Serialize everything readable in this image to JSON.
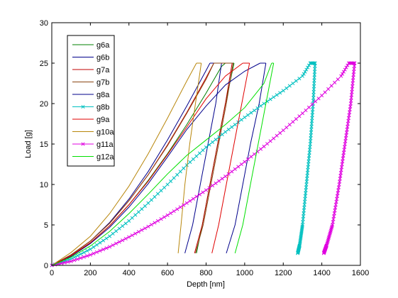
{
  "chart_data": {
    "type": "line",
    "xlabel": "Depth  [nm]",
    "ylabel": "Load  [g]",
    "xlim": [
      0,
      1600
    ],
    "ylim": [
      0,
      30
    ],
    "xticks": [
      0,
      200,
      400,
      600,
      800,
      1000,
      1200,
      1400,
      1600
    ],
    "yticks": [
      0,
      5,
      10,
      15,
      20,
      25,
      30
    ],
    "grid": false,
    "legend_position": "top-left",
    "series": [
      {
        "name": "g6a",
        "color": "#008000",
        "marker": "none",
        "loading": [
          [
            0,
            0
          ],
          [
            100,
            1.2
          ],
          [
            200,
            2.8
          ],
          [
            300,
            4.9
          ],
          [
            400,
            7.5
          ],
          [
            500,
            10.5
          ],
          [
            600,
            13.8
          ],
          [
            700,
            17.4
          ],
          [
            800,
            21.3
          ],
          [
            880,
            24.6
          ],
          [
            900,
            25
          ]
        ],
        "hold": [
          [
            900,
            25
          ],
          [
            945,
            25
          ]
        ],
        "unloading": [
          [
            945,
            25
          ],
          [
            900,
            20
          ],
          [
            860,
            15
          ],
          [
            820,
            10
          ],
          [
            780,
            5
          ],
          [
            750,
            1.5
          ]
        ]
      },
      {
        "name": "g6b",
        "color": "#00008b",
        "marker": "none",
        "loading": [
          [
            0,
            0
          ],
          [
            100,
            1.3
          ],
          [
            200,
            3.0
          ],
          [
            300,
            5.3
          ],
          [
            400,
            8.2
          ],
          [
            500,
            11.6
          ],
          [
            600,
            15.5
          ],
          [
            700,
            19.7
          ],
          [
            800,
            24.1
          ],
          [
            820,
            25
          ]
        ],
        "hold": [
          [
            820,
            25
          ],
          [
            880,
            25
          ]
        ],
        "unloading": [
          [
            880,
            25
          ],
          [
            850,
            20
          ],
          [
            810,
            15
          ],
          [
            770,
            10
          ],
          [
            730,
            5
          ],
          [
            690,
            1.5
          ]
        ]
      },
      {
        "name": "g7a",
        "color": "#c00000",
        "marker": "none",
        "loading": [
          [
            0,
            0
          ],
          [
            100,
            1.3
          ],
          [
            200,
            3.0
          ],
          [
            300,
            5.2
          ],
          [
            400,
            8.0
          ],
          [
            500,
            11.2
          ],
          [
            600,
            14.9
          ],
          [
            700,
            18.9
          ],
          [
            800,
            23.2
          ],
          [
            840,
            25
          ]
        ],
        "hold": [
          [
            840,
            25
          ],
          [
            935,
            25
          ]
        ],
        "unloading": [
          [
            935,
            25
          ],
          [
            900,
            20
          ],
          [
            860,
            15
          ],
          [
            820,
            10
          ],
          [
            780,
            5
          ],
          [
            740,
            1.5
          ]
        ]
      },
      {
        "name": "g7b",
        "color": "#8b4513",
        "marker": "none",
        "loading": [
          [
            0,
            0
          ],
          [
            100,
            1.3
          ],
          [
            200,
            3.0
          ],
          [
            300,
            5.2
          ],
          [
            400,
            8.0
          ],
          [
            500,
            11.2
          ],
          [
            600,
            14.8
          ],
          [
            700,
            18.8
          ],
          [
            800,
            23.0
          ],
          [
            840,
            25
          ]
        ],
        "hold": [
          [
            840,
            25
          ],
          [
            940,
            25
          ]
        ],
        "unloading": [
          [
            940,
            25
          ],
          [
            905,
            20
          ],
          [
            865,
            15
          ],
          [
            825,
            10
          ],
          [
            785,
            5
          ],
          [
            745,
            1.5
          ]
        ]
      },
      {
        "name": "g8a",
        "color": "#00008b",
        "marker": "none",
        "loading": [
          [
            0,
            0
          ],
          [
            100,
            1.1
          ],
          [
            200,
            2.7
          ],
          [
            300,
            4.7
          ],
          [
            400,
            7.2
          ],
          [
            500,
            10.1
          ],
          [
            600,
            13.4
          ],
          [
            700,
            16.8
          ],
          [
            800,
            19.7
          ],
          [
            900,
            22.3
          ],
          [
            1000,
            24.0
          ],
          [
            1080,
            25
          ]
        ],
        "hold": [
          [
            1080,
            25
          ],
          [
            1110,
            25
          ]
        ],
        "unloading": [
          [
            1110,
            25
          ],
          [
            1075,
            20
          ],
          [
            1030,
            15
          ],
          [
            990,
            10
          ],
          [
            950,
            5
          ],
          [
            905,
            1.5
          ]
        ]
      },
      {
        "name": "g8b",
        "color": "#00c0c0",
        "marker": "x",
        "loading": [
          [
            0,
            0
          ],
          [
            100,
            0.8
          ],
          [
            200,
            2.0
          ],
          [
            300,
            3.6
          ],
          [
            400,
            5.5
          ],
          [
            500,
            7.7
          ],
          [
            600,
            10.0
          ],
          [
            700,
            12.4
          ],
          [
            800,
            14.6
          ],
          [
            900,
            16.5
          ],
          [
            1000,
            18.3
          ],
          [
            1100,
            20.0
          ],
          [
            1200,
            21.6
          ],
          [
            1300,
            23.4
          ],
          [
            1340,
            25
          ]
        ],
        "hold": [
          [
            1340,
            25
          ],
          [
            1365,
            25
          ]
        ],
        "unloading": [
          [
            1365,
            25
          ],
          [
            1355,
            20
          ],
          [
            1340,
            15
          ],
          [
            1320,
            10
          ],
          [
            1300,
            5
          ],
          [
            1285,
            2.5
          ],
          [
            1275,
            1.5
          ]
        ]
      },
      {
        "name": "g9a",
        "color": "#e00000",
        "marker": "none",
        "loading": [
          [
            0,
            0
          ],
          [
            100,
            1.2
          ],
          [
            200,
            2.8
          ],
          [
            300,
            4.9
          ],
          [
            400,
            7.5
          ],
          [
            500,
            10.4
          ],
          [
            600,
            13.7
          ],
          [
            700,
            17.1
          ],
          [
            800,
            20.6
          ],
          [
            900,
            23.4
          ],
          [
            990,
            25
          ]
        ],
        "hold": [
          [
            990,
            25
          ],
          [
            1025,
            25
          ]
        ],
        "unloading": [
          [
            1025,
            25
          ],
          [
            985,
            20
          ],
          [
            945,
            15
          ],
          [
            905,
            10
          ],
          [
            865,
            5
          ],
          [
            830,
            1.5
          ]
        ]
      },
      {
        "name": "g10a",
        "color": "#b8860b",
        "marker": "none",
        "loading": [
          [
            0,
            0
          ],
          [
            100,
            1.6
          ],
          [
            200,
            3.6
          ],
          [
            300,
            6.4
          ],
          [
            400,
            9.8
          ],
          [
            500,
            13.8
          ],
          [
            600,
            18.2
          ],
          [
            700,
            22.8
          ],
          [
            750,
            25
          ]
        ],
        "hold": [
          [
            750,
            25
          ],
          [
            775,
            25
          ]
        ],
        "unloading": [
          [
            775,
            25
          ],
          [
            745,
            20
          ],
          [
            715,
            15
          ],
          [
            690,
            10
          ],
          [
            670,
            5
          ],
          [
            655,
            1.5
          ]
        ]
      },
      {
        "name": "g11a",
        "color": "#e000e0",
        "marker": "x",
        "loading": [
          [
            0,
            0
          ],
          [
            100,
            0.5
          ],
          [
            200,
            1.3
          ],
          [
            300,
            2.3
          ],
          [
            400,
            3.5
          ],
          [
            500,
            4.8
          ],
          [
            600,
            6.2
          ],
          [
            700,
            7.7
          ],
          [
            800,
            9.3
          ],
          [
            900,
            11.0
          ],
          [
            1000,
            12.8
          ],
          [
            1100,
            14.7
          ],
          [
            1200,
            16.7
          ],
          [
            1300,
            18.8
          ],
          [
            1400,
            21.0
          ],
          [
            1500,
            23.4
          ],
          [
            1540,
            25
          ]
        ],
        "hold": [
          [
            1540,
            25
          ],
          [
            1570,
            25
          ]
        ],
        "unloading": [
          [
            1570,
            25
          ],
          [
            1550,
            20
          ],
          [
            1520,
            15
          ],
          [
            1490,
            10
          ],
          [
            1455,
            5
          ],
          [
            1425,
            2.5
          ],
          [
            1410,
            1.5
          ]
        ]
      },
      {
        "name": "g12a",
        "color": "#00e000",
        "marker": "none",
        "loading": [
          [
            0,
            0
          ],
          [
            100,
            1.0
          ],
          [
            200,
            2.4
          ],
          [
            300,
            4.2
          ],
          [
            400,
            6.4
          ],
          [
            500,
            8.8
          ],
          [
            600,
            11.3
          ],
          [
            700,
            13.6
          ],
          [
            800,
            15.5
          ],
          [
            900,
            17.4
          ],
          [
            1000,
            19.5
          ],
          [
            1100,
            22.5
          ],
          [
            1140,
            25
          ]
        ],
        "hold": [
          [
            1140,
            25
          ],
          [
            1150,
            25
          ]
        ],
        "unloading": [
          [
            1150,
            25
          ],
          [
            1110,
            20
          ],
          [
            1070,
            15
          ],
          [
            1030,
            10
          ],
          [
            990,
            5
          ],
          [
            950,
            1.5
          ]
        ]
      }
    ]
  }
}
